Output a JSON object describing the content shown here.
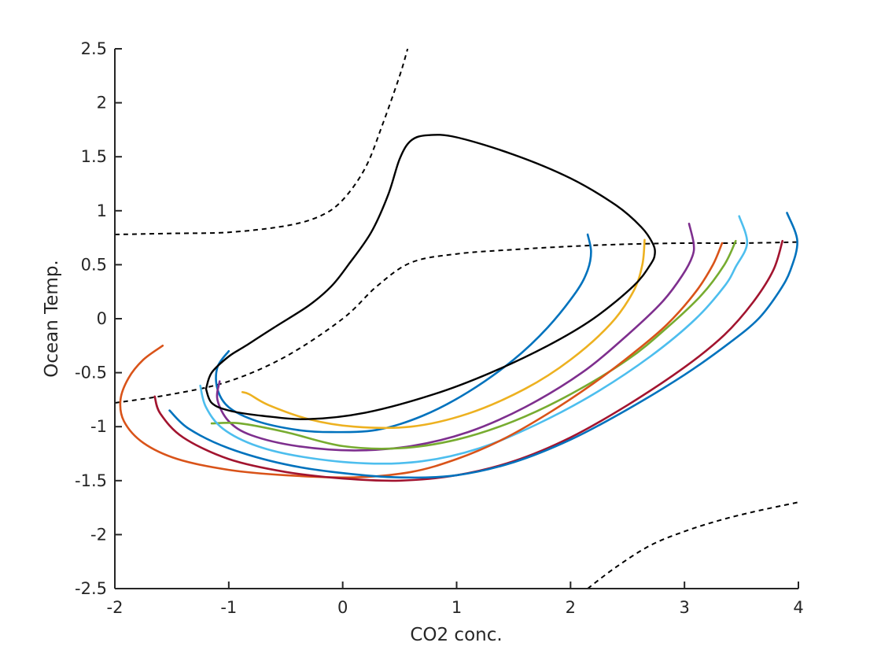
{
  "chart_data": {
    "type": "line",
    "title": "",
    "xlabel": "CO2 conc.",
    "ylabel": "Ocean Temp.",
    "xlim": [
      -2,
      4
    ],
    "ylim": [
      -2.5,
      2.5
    ],
    "xticks": [
      -2,
      -1,
      0,
      1,
      2,
      3,
      4
    ],
    "yticks": [
      -2.5,
      -2,
      -1.5,
      -1,
      -0.5,
      0,
      0.5,
      1,
      1.5,
      2,
      2.5
    ],
    "xtick_labels": [
      "-2",
      "-1",
      "0",
      "1",
      "2",
      "3",
      "4"
    ],
    "ytick_labels": [
      "-2.5",
      "-2",
      "-1.5",
      "-1",
      "-0.5",
      "0",
      "0.5",
      "1",
      "1.5",
      "2",
      "2.5"
    ],
    "grid": false,
    "legend": false,
    "nullclines": [
      {
        "style": "dashed",
        "color": "#000000",
        "x": [
          -2,
          -1.5,
          -1,
          -0.5,
          -0.2,
          0,
          0.2,
          0.35,
          0.5,
          0.57
        ],
        "y": [
          0.78,
          0.79,
          0.8,
          0.86,
          0.95,
          1.1,
          1.4,
          1.8,
          2.25,
          2.5
        ]
      },
      {
        "style": "dashed",
        "color": "#000000",
        "x": [
          -2,
          -1.5,
          -1,
          -0.5,
          0,
          0.3,
          0.6,
          1,
          1.5,
          2,
          2.5,
          3,
          3.5,
          4
        ],
        "y": [
          -0.78,
          -0.7,
          -0.58,
          -0.35,
          0,
          0.3,
          0.52,
          0.6,
          0.64,
          0.67,
          0.69,
          0.7,
          0.7,
          0.71
        ]
      },
      {
        "style": "dashed",
        "color": "#000000",
        "x": [
          2.15,
          2.4,
          2.7,
          3.0,
          3.3,
          3.6,
          4.0
        ],
        "y": [
          -2.5,
          -2.3,
          -2.1,
          -1.97,
          -1.87,
          -1.79,
          -1.7
        ]
      }
    ],
    "limit_cycle": {
      "color": "#000000",
      "x": [
        -1.2,
        -1.15,
        -1.0,
        -0.85,
        -0.6,
        -0.3,
        -0.1,
        0.05,
        0.25,
        0.4,
        0.5,
        0.6,
        0.75,
        1.0,
        1.5,
        2.0,
        2.4,
        2.62,
        2.72,
        2.74,
        2.7,
        2.55,
        2.2,
        1.8,
        1.3,
        0.8,
        0.2,
        -0.3,
        -0.7,
        -1.0,
        -1.15,
        -1.2
      ],
      "y": [
        -0.65,
        -0.5,
        -0.35,
        -0.25,
        -0.08,
        0.12,
        0.3,
        0.5,
        0.8,
        1.15,
        1.48,
        1.65,
        1.7,
        1.68,
        1.52,
        1.3,
        1.05,
        0.85,
        0.7,
        0.6,
        0.5,
        0.3,
        0.0,
        -0.25,
        -0.5,
        -0.7,
        -0.87,
        -0.93,
        -0.9,
        -0.85,
        -0.78,
        -0.65
      ]
    },
    "series": [
      {
        "color": "#0072BD",
        "x": [
          -1.0,
          -1.1,
          -1.1,
          -1.0,
          -0.75,
          -0.4,
          -0.1,
          0.3,
          0.7,
          1.1,
          1.5,
          1.8,
          2.05,
          2.15,
          2.18,
          2.15
        ],
        "y": [
          -0.3,
          -0.45,
          -0.65,
          -0.82,
          -0.95,
          -1.03,
          -1.05,
          -1.03,
          -0.9,
          -0.68,
          -0.38,
          -0.08,
          0.25,
          0.45,
          0.62,
          0.78
        ]
      },
      {
        "color": "#EDB120",
        "x": [
          -0.88,
          -0.82,
          -0.65,
          -0.3,
          0.1,
          0.6,
          1.1,
          1.6,
          2.0,
          2.35,
          2.55,
          2.63,
          2.65
        ],
        "y": [
          -0.68,
          -0.7,
          -0.8,
          -0.93,
          -1.0,
          -1.0,
          -0.88,
          -0.65,
          -0.38,
          -0.05,
          0.25,
          0.5,
          0.73
        ]
      },
      {
        "color": "#7E2F8E",
        "x": [
          -1.08,
          -1.1,
          -1.0,
          -0.8,
          -0.4,
          0.1,
          0.6,
          1.1,
          1.6,
          2.1,
          2.5,
          2.8,
          2.98,
          3.07,
          3.08,
          3.04
        ],
        "y": [
          -0.58,
          -0.75,
          -0.95,
          -1.08,
          -1.18,
          -1.22,
          -1.18,
          -1.05,
          -0.82,
          -0.5,
          -0.15,
          0.15,
          0.4,
          0.58,
          0.7,
          0.88
        ]
      },
      {
        "color": "#77AC30",
        "x": [
          -1.15,
          -0.9,
          -0.5,
          0,
          0.5,
          1.0,
          1.5,
          2.0,
          2.5,
          2.85,
          3.15,
          3.35,
          3.45
        ],
        "y": [
          -0.97,
          -0.97,
          -1.05,
          -1.18,
          -1.2,
          -1.12,
          -0.95,
          -0.7,
          -0.38,
          -0.08,
          0.22,
          0.5,
          0.72
        ]
      },
      {
        "color": "#4DBEEE",
        "x": [
          -1.25,
          -1.2,
          -1.05,
          -0.75,
          -0.35,
          0.2,
          0.7,
          1.2,
          1.7,
          2.2,
          2.7,
          3.1,
          3.35,
          3.45,
          3.55,
          3.48
        ],
        "y": [
          -0.62,
          -0.82,
          -1.02,
          -1.18,
          -1.28,
          -1.34,
          -1.32,
          -1.2,
          -0.98,
          -0.7,
          -0.35,
          0.0,
          0.3,
          0.48,
          0.7,
          0.95
        ]
      },
      {
        "color": "#D95319",
        "x": [
          -1.58,
          -1.75,
          -1.88,
          -1.95,
          -1.92,
          -1.75,
          -1.45,
          -1.0,
          -0.5,
          0.1,
          0.6,
          1.0,
          1.4,
          1.8,
          2.2,
          2.55,
          2.85,
          3.1,
          3.25,
          3.33
        ],
        "y": [
          -0.25,
          -0.38,
          -0.55,
          -0.75,
          -0.95,
          -1.15,
          -1.3,
          -1.4,
          -1.45,
          -1.47,
          -1.42,
          -1.3,
          -1.12,
          -0.88,
          -0.6,
          -0.32,
          -0.05,
          0.25,
          0.5,
          0.7
        ]
      },
      {
        "color": "#A2142F",
        "x": [
          -1.65,
          -1.6,
          -1.4,
          -1.0,
          -0.5,
          0.0,
          0.5,
          1.0,
          1.5,
          2.0,
          2.5,
          3.0,
          3.35,
          3.6,
          3.78,
          3.86
        ],
        "y": [
          -0.72,
          -0.88,
          -1.1,
          -1.3,
          -1.42,
          -1.48,
          -1.5,
          -1.45,
          -1.32,
          -1.1,
          -0.8,
          -0.45,
          -0.15,
          0.15,
          0.45,
          0.72
        ]
      },
      {
        "color": "#0072BD",
        "x": [
          -1.52,
          -1.35,
          -1.0,
          -0.5,
          0.0,
          0.5,
          1.0,
          1.5,
          2.0,
          2.5,
          3.0,
          3.4,
          3.65,
          3.83,
          3.93,
          3.99,
          3.9
        ],
        "y": [
          -0.85,
          -1.02,
          -1.2,
          -1.35,
          -1.43,
          -1.47,
          -1.45,
          -1.33,
          -1.12,
          -0.84,
          -0.52,
          -0.22,
          0.0,
          0.25,
          0.45,
          0.72,
          0.98
        ]
      }
    ]
  }
}
